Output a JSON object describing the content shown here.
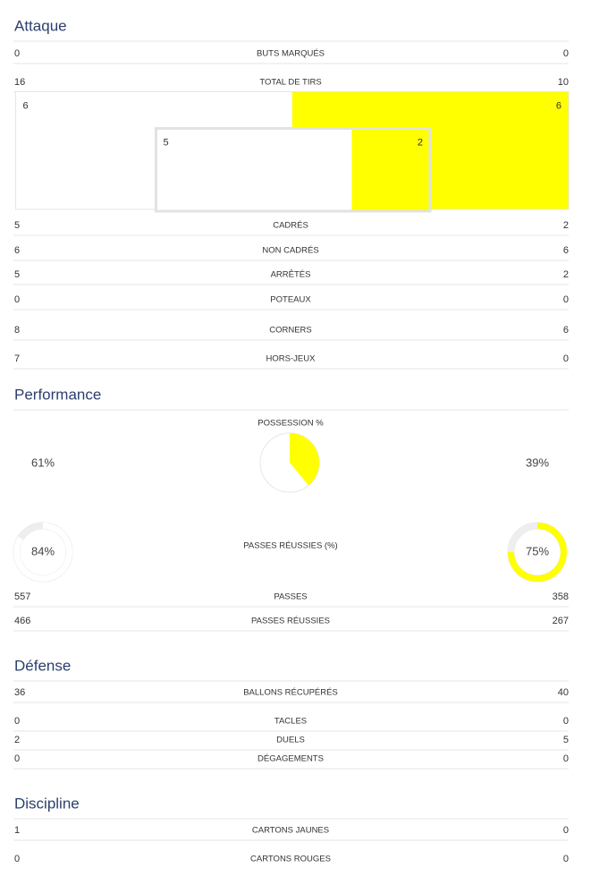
{
  "sections": [
    {
      "title": "Attaque",
      "items": [
        {
          "label": "BUTS MARQUÉS",
          "values": [
            0,
            0
          ]
        },
        {
          "label": "TOTAL DE TIRS",
          "values": [
            16,
            10
          ]
        },
        {
          "kind": "shots",
          "outer": [
            6,
            6
          ],
          "inner": [
            5,
            2
          ]
        },
        {
          "label": "CADRÉS",
          "values": [
            5,
            2
          ]
        },
        {
          "label": "NON CADRÉS",
          "values": [
            6,
            6
          ]
        },
        {
          "label": "ARRÊTÉS",
          "values": [
            5,
            2
          ]
        },
        {
          "label": "POTEAUX",
          "values": [
            0,
            0
          ]
        },
        {
          "label": "CORNERS",
          "values": [
            8,
            6
          ]
        },
        {
          "label": "HORS-JEUX",
          "values": [
            7,
            0
          ]
        }
      ]
    },
    {
      "title": "Performance",
      "items": [
        {
          "kind": "pie",
          "label": "POSSESSION %",
          "values": [
            61,
            39
          ],
          "value_labels": [
            "61%",
            "39%"
          ]
        },
        {
          "kind": "rings",
          "label": "PASSES RÉUSSIES (%)",
          "values": [
            84,
            75
          ],
          "value_labels": [
            "84%",
            "75%"
          ]
        },
        {
          "label": "PASSES",
          "values": [
            557,
            358
          ]
        },
        {
          "label": "PASSES RÉUSSIES",
          "values": [
            466,
            267
          ]
        }
      ]
    },
    {
      "title": "Défense",
      "items": [
        {
          "label": "BALLONS RÉCUPÉRÉS",
          "values": [
            36,
            40
          ]
        },
        {
          "label": "TACLES",
          "values": [
            0,
            0
          ]
        },
        {
          "label": "DUELS",
          "values": [
            2,
            5
          ]
        },
        {
          "label": "DÉGAGEMENTS",
          "values": [
            0,
            0
          ]
        }
      ]
    },
    {
      "title": "Discipline",
      "items": [
        {
          "label": "CARTONS JAUNES",
          "values": [
            1,
            0
          ]
        },
        {
          "label": "CARTONS ROUGES",
          "values": [
            0,
            0
          ]
        }
      ]
    }
  ],
  "colors": {
    "home": "#ffffff",
    "away": "#ffff00"
  }
}
